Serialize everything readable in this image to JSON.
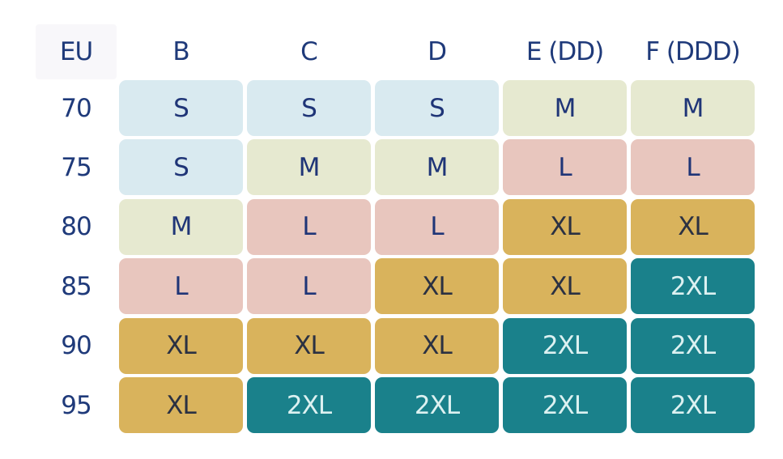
{
  "table": {
    "corner": "EU",
    "columns": [
      "B",
      "C",
      "D",
      "E (DD)",
      "F (DDD)"
    ],
    "rows": [
      {
        "label": "70",
        "cells": [
          {
            "label": "S",
            "fill": "#d9eaf0",
            "ink": "#1f3577"
          },
          {
            "label": "S",
            "fill": "#d9eaf0",
            "ink": "#1f3577"
          },
          {
            "label": "S",
            "fill": "#d9eaf0",
            "ink": "#1f3577"
          },
          {
            "label": "M",
            "fill": "#e6e9d0",
            "ink": "#1f3577"
          },
          {
            "label": "M",
            "fill": "#e6e9d0",
            "ink": "#1f3577"
          }
        ]
      },
      {
        "label": "75",
        "cells": [
          {
            "label": "S",
            "fill": "#d9eaf0",
            "ink": "#1f3577"
          },
          {
            "label": "M",
            "fill": "#e6e9d0",
            "ink": "#1f3577"
          },
          {
            "label": "M",
            "fill": "#e6e9d0",
            "ink": "#1f3577"
          },
          {
            "label": "L",
            "fill": "#e8c6be",
            "ink": "#1f3577"
          },
          {
            "label": "L",
            "fill": "#e8c6be",
            "ink": "#1f3577"
          }
        ]
      },
      {
        "label": "80",
        "cells": [
          {
            "label": "M",
            "fill": "#e6e9d0",
            "ink": "#1f3577"
          },
          {
            "label": "L",
            "fill": "#e8c6be",
            "ink": "#1f3577"
          },
          {
            "label": "L",
            "fill": "#e8c6be",
            "ink": "#1f3577"
          },
          {
            "label": "XL",
            "fill": "#d9b35c",
            "ink": "#2b3142"
          },
          {
            "label": "XL",
            "fill": "#d9b35c",
            "ink": "#2b3142"
          }
        ]
      },
      {
        "label": "85",
        "cells": [
          {
            "label": "L",
            "fill": "#e8c6be",
            "ink": "#1f3577"
          },
          {
            "label": "L",
            "fill": "#e8c6be",
            "ink": "#1f3577"
          },
          {
            "label": "XL",
            "fill": "#d9b35c",
            "ink": "#2b3142"
          },
          {
            "label": "XL",
            "fill": "#d9b35c",
            "ink": "#2b3142"
          },
          {
            "label": "2XL",
            "fill": "#1a818b",
            "ink": "#dcf1f1"
          }
        ]
      },
      {
        "label": "90",
        "cells": [
          {
            "label": "XL",
            "fill": "#d9b35c",
            "ink": "#2b3142"
          },
          {
            "label": "XL",
            "fill": "#d9b35c",
            "ink": "#2b3142"
          },
          {
            "label": "XL",
            "fill": "#d9b35c",
            "ink": "#2b3142"
          },
          {
            "label": "2XL",
            "fill": "#1a818b",
            "ink": "#dcf1f1"
          },
          {
            "label": "2XL",
            "fill": "#1a818b",
            "ink": "#dcf1f1"
          }
        ]
      },
      {
        "label": "95",
        "cells": [
          {
            "label": "XL",
            "fill": "#d9b35c",
            "ink": "#2b3142"
          },
          {
            "label": "2XL",
            "fill": "#1a818b",
            "ink": "#dcf1f1"
          },
          {
            "label": "2XL",
            "fill": "#1a818b",
            "ink": "#dcf1f1"
          },
          {
            "label": "2XL",
            "fill": "#1a818b",
            "ink": "#dcf1f1"
          },
          {
            "label": "2XL",
            "fill": "#1a818b",
            "ink": "#dcf1f1"
          }
        ]
      }
    ]
  }
}
